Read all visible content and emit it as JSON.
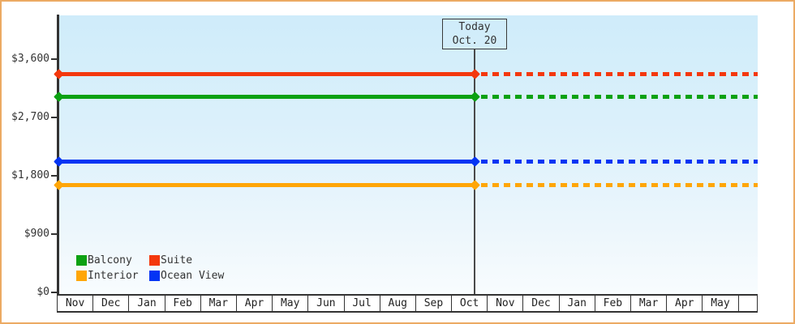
{
  "window": {
    "border_color": "#ecaa63",
    "background": "#ffffff"
  },
  "chart_data": {
    "type": "line",
    "title": "",
    "description": "Cruise cabin price tracker: flat price lines per cabin category, solid history up to today then dotted projection",
    "x_categories": [
      "Nov",
      "Dec",
      "Jan",
      "Feb",
      "Mar",
      "Apr",
      "May",
      "Jun",
      "Jul",
      "Aug",
      "Sep",
      "Oct",
      "Nov",
      "Dec",
      "Jan",
      "Feb",
      "Mar",
      "Apr",
      "May"
    ],
    "x_axis_note": "19 month cells plus one trailing empty partial cell",
    "y_ticks": [
      {
        "label": "$3,600",
        "value": 3600
      },
      {
        "label": "$2,700",
        "value": 2700
      },
      {
        "label": "$1,800",
        "value": 1800
      },
      {
        "label": "$900",
        "value": 900
      },
      {
        "label": "$0",
        "value": 0
      }
    ],
    "ylim": [
      0,
      4300
    ],
    "grid": false,
    "series": [
      {
        "name": "Suite",
        "color": "#f4380d",
        "value": 3375
      },
      {
        "name": "Balcony",
        "color": "#0ca112",
        "value": 3025
      },
      {
        "name": "Ocean View",
        "color": "#0434f4",
        "value": 2020
      },
      {
        "name": "Interior",
        "color": "#ffa607",
        "value": 1655
      }
    ],
    "today": {
      "lines": [
        "Today",
        "Oct. 20"
      ],
      "month_index": 11,
      "month_fraction": 0.65
    },
    "legend": [
      {
        "label": "Balcony",
        "color": "#0ca112"
      },
      {
        "label": "Suite",
        "color": "#f4380d"
      },
      {
        "label": "Interior",
        "color": "#ffa607"
      },
      {
        "label": "Ocean View",
        "color": "#0434f4"
      }
    ],
    "legend_position": "bottom-left inside plot"
  }
}
